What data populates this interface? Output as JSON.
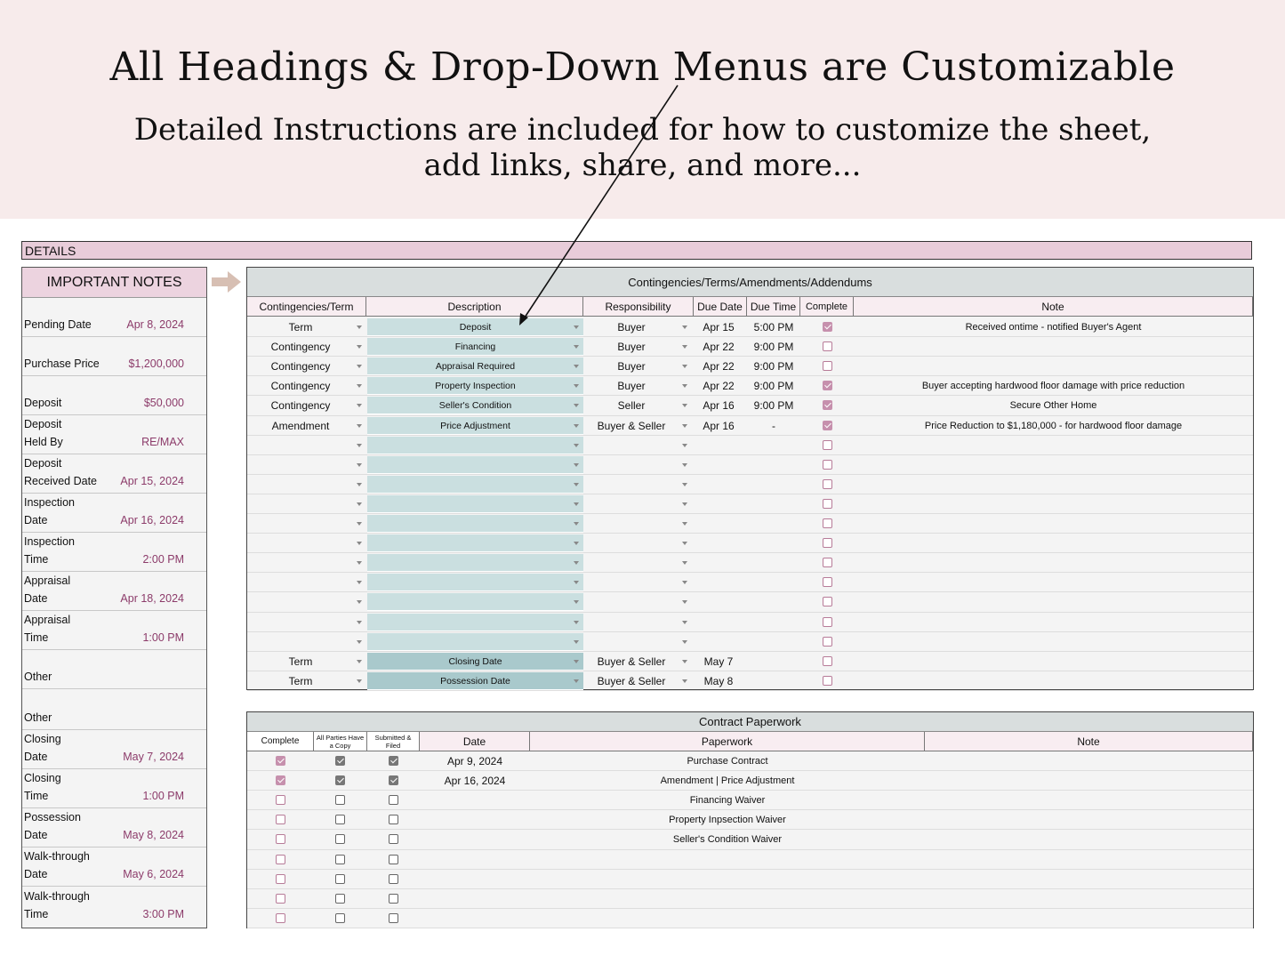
{
  "banner": {
    "title": "All Headings & Drop-Down Menus are Customizable",
    "sub_line1": "Detailed Instructions are included for how to customize the sheet,",
    "sub_line2": "add links, share, and more..."
  },
  "details_label": "DETAILS",
  "notes": {
    "title": "IMPORTANT NOTES",
    "items": [
      {
        "label": "Pending Date",
        "value": "Apr 8, 2024"
      },
      {
        "label": "Purchase Price",
        "value": "$1,200,000"
      },
      {
        "label": "Deposit",
        "value": "$50,000"
      },
      {
        "label": "Deposit\nHeld By",
        "value": "RE/MAX"
      },
      {
        "label": "Deposit\nReceived Date",
        "value": "Apr 15, 2024"
      },
      {
        "label": "Inspection\nDate",
        "value": "Apr 16, 2024"
      },
      {
        "label": "Inspection\nTime",
        "value": "2:00 PM"
      },
      {
        "label": "Appraisal\nDate",
        "value": "Apr 18, 2024"
      },
      {
        "label": "Appraisal\nTime",
        "value": "1:00 PM"
      },
      {
        "label": "Other",
        "value": ""
      },
      {
        "label": "Other",
        "value": ""
      },
      {
        "label": "Closing\nDate",
        "value": "May 7, 2024"
      },
      {
        "label": "Closing\nTime",
        "value": "1:00 PM"
      },
      {
        "label": "Possession\nDate",
        "value": "May 8, 2024"
      },
      {
        "label": "Walk-through\nDate",
        "value": "May 6, 2024"
      },
      {
        "label": "Walk-through\nTime",
        "value": "3:00 PM"
      }
    ]
  },
  "contingencies": {
    "title": "Contingencies/Terms/Amendments/Addendums",
    "headers": [
      "Contingencies/Term",
      "Description",
      "Responsibility",
      "Due Date",
      "Due Time",
      "Complete",
      "Note"
    ],
    "rows": [
      {
        "term": "Term",
        "desc": "Deposit",
        "resp": "Buyer",
        "due": "Apr 15",
        "time": "5:00 PM",
        "complete": true,
        "note": "Received ontime - notified Buyer's Agent"
      },
      {
        "term": "Contingency",
        "desc": "Financing",
        "resp": "Buyer",
        "due": "Apr 22",
        "time": "9:00 PM",
        "complete": false,
        "note": ""
      },
      {
        "term": "Contingency",
        "desc": "Appraisal Required",
        "resp": "Buyer",
        "due": "Apr 22",
        "time": "9:00 PM",
        "complete": false,
        "note": ""
      },
      {
        "term": "Contingency",
        "desc": "Property Inspection",
        "resp": "Buyer",
        "due": "Apr 22",
        "time": "9:00 PM",
        "complete": true,
        "note": "Buyer accepting hardwood floor damage with price reduction"
      },
      {
        "term": "Contingency",
        "desc": "Seller's Condition",
        "resp": "Seller",
        "due": "Apr 16",
        "time": "9:00 PM",
        "complete": true,
        "note": "Secure Other Home"
      },
      {
        "term": "Amendment",
        "desc": "Price Adjustment",
        "resp": "Buyer & Seller",
        "due": "Apr 16",
        "time": "-",
        "complete": true,
        "note": "Price Reduction to $1,180,000 - for hardwood floor damage"
      },
      {
        "term": "",
        "desc": "",
        "resp": "",
        "due": "",
        "time": "",
        "complete": false,
        "note": ""
      },
      {
        "term": "",
        "desc": "",
        "resp": "",
        "due": "",
        "time": "",
        "complete": false,
        "note": ""
      },
      {
        "term": "",
        "desc": "",
        "resp": "",
        "due": "",
        "time": "",
        "complete": false,
        "note": ""
      },
      {
        "term": "",
        "desc": "",
        "resp": "",
        "due": "",
        "time": "",
        "complete": false,
        "note": ""
      },
      {
        "term": "",
        "desc": "",
        "resp": "",
        "due": "",
        "time": "",
        "complete": false,
        "note": ""
      },
      {
        "term": "",
        "desc": "",
        "resp": "",
        "due": "",
        "time": "",
        "complete": false,
        "note": ""
      },
      {
        "term": "",
        "desc": "",
        "resp": "",
        "due": "",
        "time": "",
        "complete": false,
        "note": ""
      },
      {
        "term": "",
        "desc": "",
        "resp": "",
        "due": "",
        "time": "",
        "complete": false,
        "note": ""
      },
      {
        "term": "",
        "desc": "",
        "resp": "",
        "due": "",
        "time": "",
        "complete": false,
        "note": ""
      },
      {
        "term": "",
        "desc": "",
        "resp": "",
        "due": "",
        "time": "",
        "complete": false,
        "note": ""
      },
      {
        "term": "",
        "desc": "",
        "resp": "",
        "due": "",
        "time": "",
        "complete": false,
        "note": ""
      },
      {
        "term": "Term",
        "desc": "Closing Date",
        "resp": "Buyer & Seller",
        "due": "May 7",
        "time": "",
        "complete": false,
        "note": ""
      },
      {
        "term": "Term",
        "desc": "Possession Date",
        "resp": "Buyer & Seller",
        "due": "May 8",
        "time": "",
        "complete": false,
        "note": ""
      }
    ]
  },
  "paperwork": {
    "title": "Contract Paperwork",
    "headers": [
      "Complete",
      "All Parties Have a Copy",
      "Submitted & Filed",
      "Date",
      "Paperwork",
      "Note"
    ],
    "rows": [
      {
        "complete": true,
        "copy": true,
        "filed": true,
        "date": "Apr 9, 2024",
        "paper": "Purchase Contract",
        "note": ""
      },
      {
        "complete": true,
        "copy": true,
        "filed": true,
        "date": "Apr 16, 2024",
        "paper": "Amendment | Price Adjustment",
        "note": ""
      },
      {
        "complete": false,
        "copy": false,
        "filed": false,
        "date": "",
        "paper": "Financing Waiver",
        "note": ""
      },
      {
        "complete": false,
        "copy": false,
        "filed": false,
        "date": "",
        "paper": "Property Inpsection Waiver",
        "note": ""
      },
      {
        "complete": false,
        "copy": false,
        "filed": false,
        "date": "",
        "paper": "Seller's Condition Waiver",
        "note": ""
      },
      {
        "complete": false,
        "copy": false,
        "filed": false,
        "date": "",
        "paper": "",
        "note": ""
      },
      {
        "complete": false,
        "copy": false,
        "filed": false,
        "date": "",
        "paper": "",
        "note": ""
      },
      {
        "complete": false,
        "copy": false,
        "filed": false,
        "date": "",
        "paper": "",
        "note": ""
      },
      {
        "complete": false,
        "copy": false,
        "filed": false,
        "date": "",
        "paper": "",
        "note": ""
      }
    ]
  },
  "colors": {
    "accent": "#8c3b6a",
    "header_pink": "#ecd3df",
    "desc_teal": "#cadfe0"
  }
}
